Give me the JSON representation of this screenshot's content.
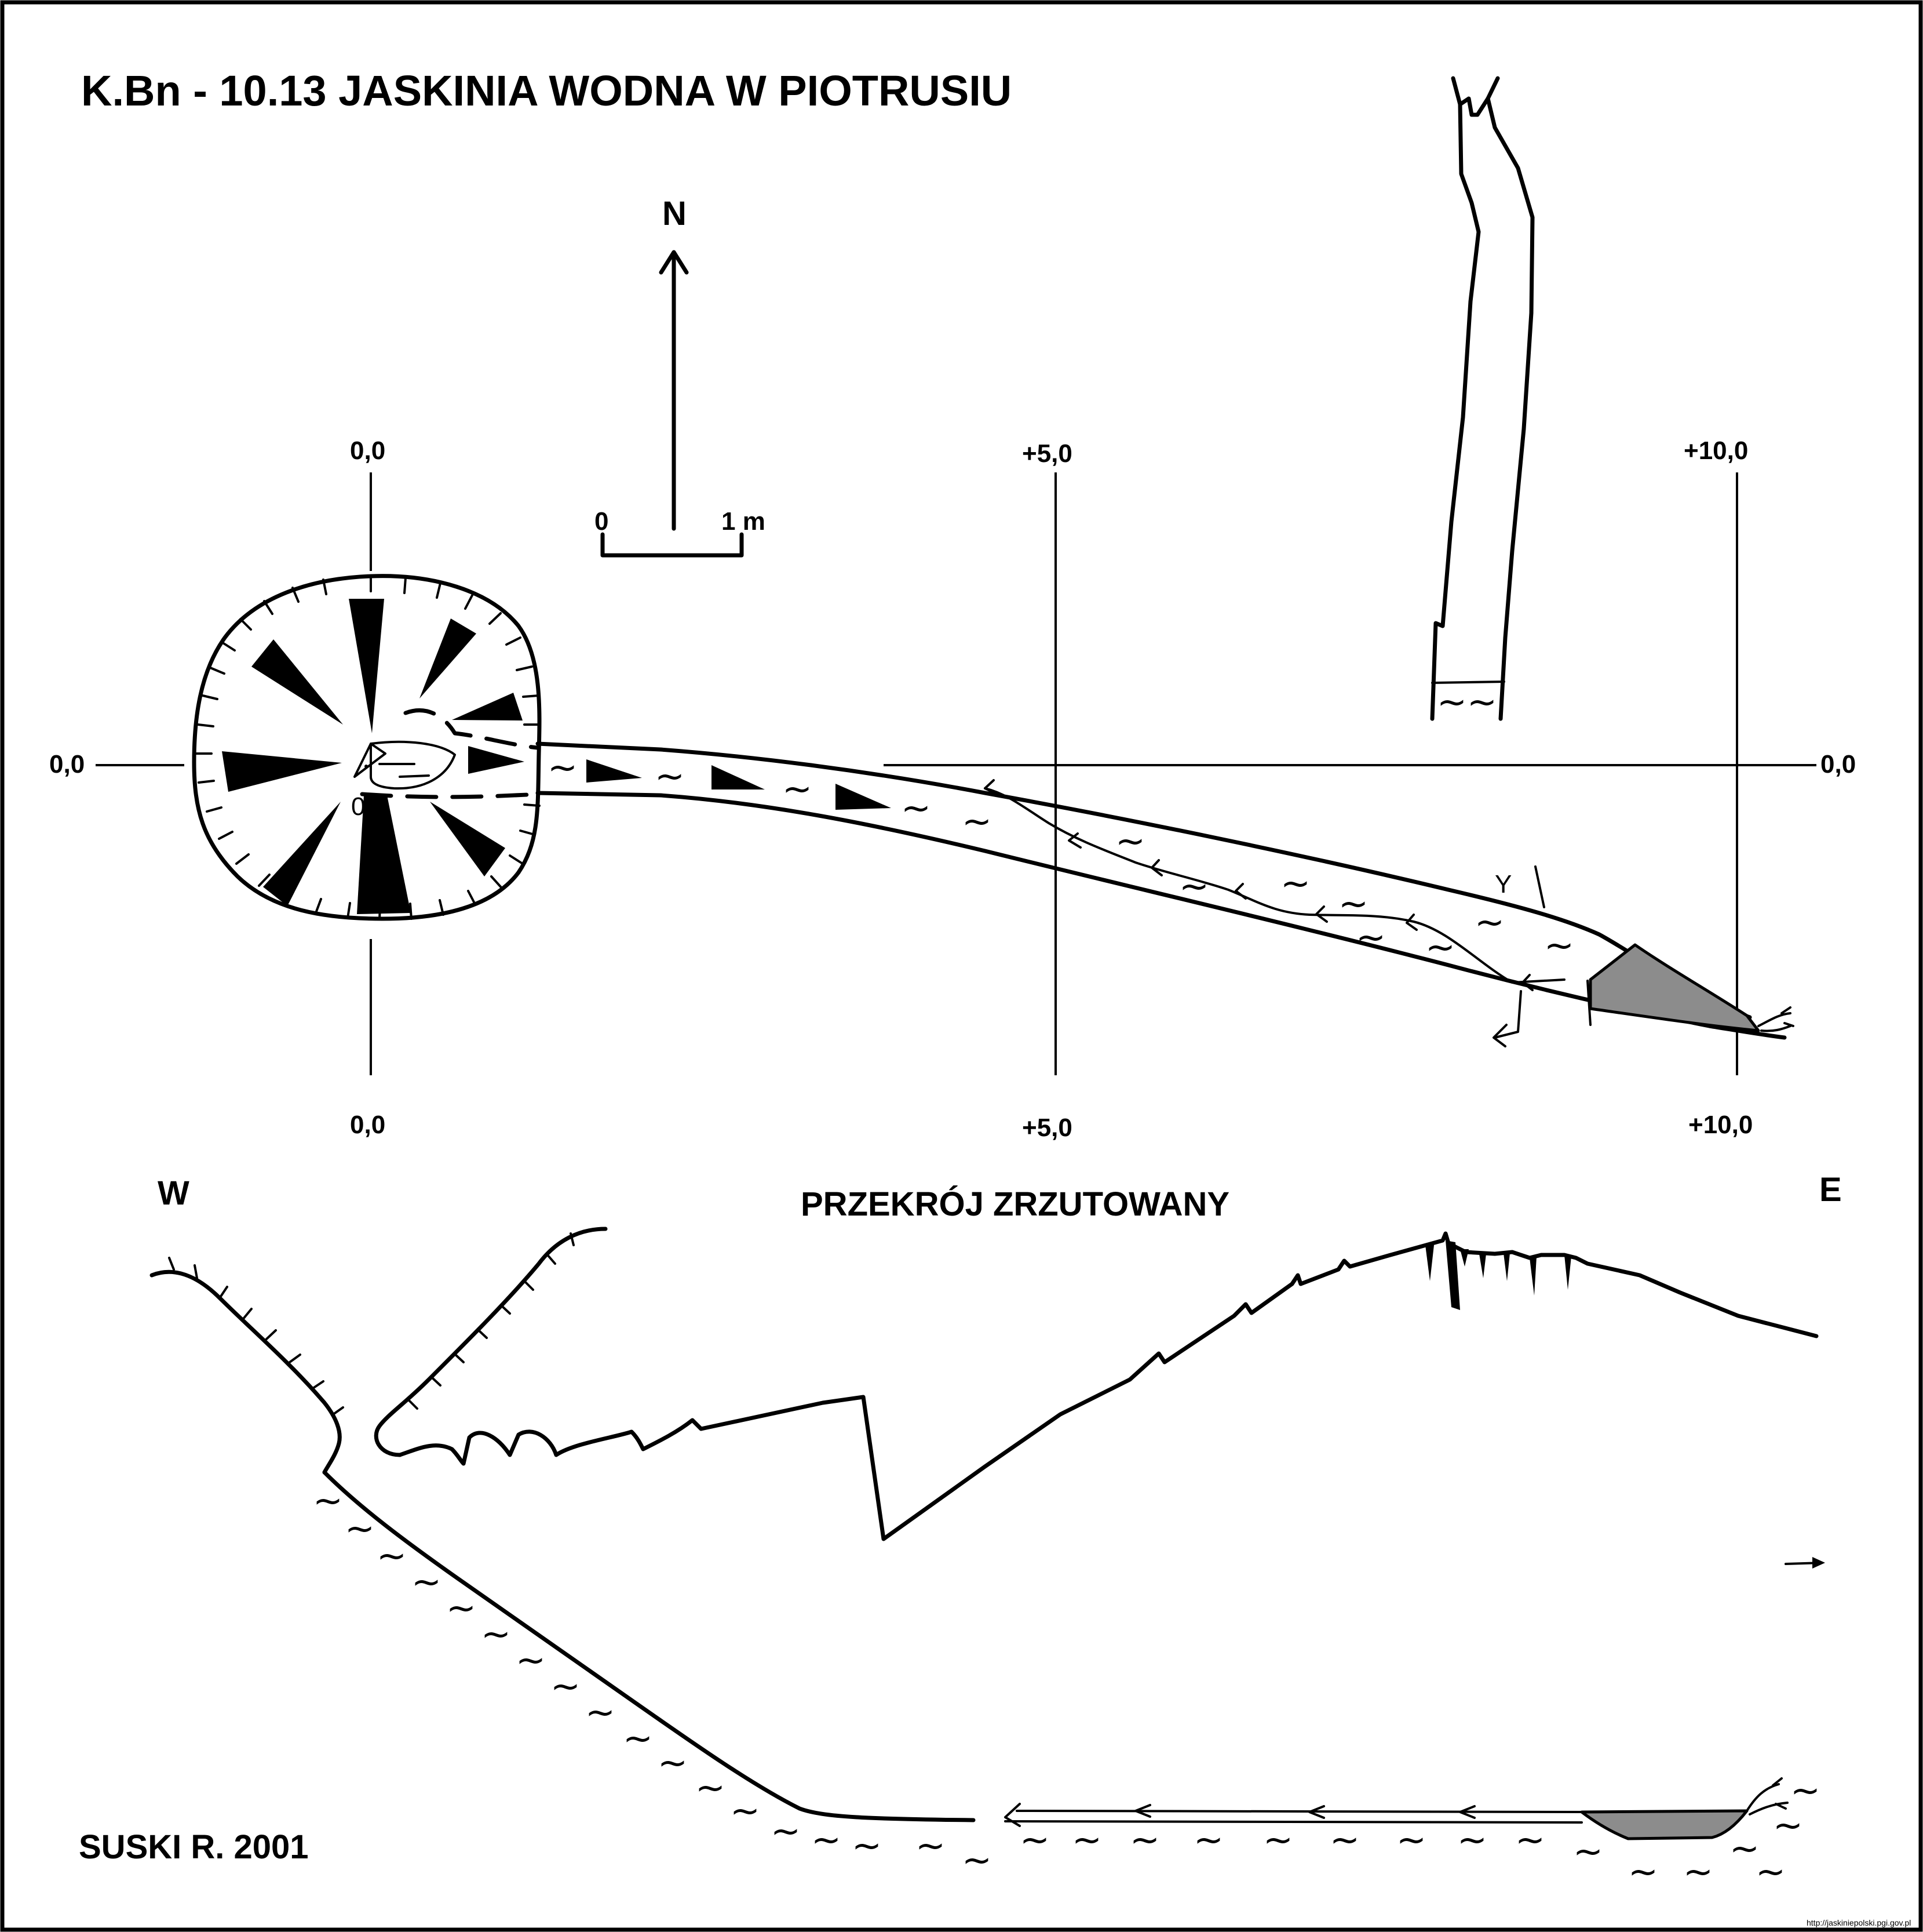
{
  "title": "K.Bn - 10.13  JASKINIA WODNA W PIOTRUSIU",
  "north": {
    "label": "N"
  },
  "scale": {
    "start": "0",
    "end": "1 m"
  },
  "grid": {
    "top_labels": [
      "0,0",
      "+5,0",
      "+10,0"
    ],
    "bottom_labels": [
      "0,0",
      "+5,0",
      "+10,0"
    ],
    "left_label": "0,0",
    "right_label": "0,0"
  },
  "plan": {
    "depth_label": "0,7",
    "section_mark": "Y"
  },
  "section": {
    "title": "PRZEKRÓJ ZRZUTOWANY",
    "west": "W",
    "east": "E"
  },
  "author": "SUSKI R. 2001",
  "source": "http://jaskiniepolski.pgi.gov.pl"
}
